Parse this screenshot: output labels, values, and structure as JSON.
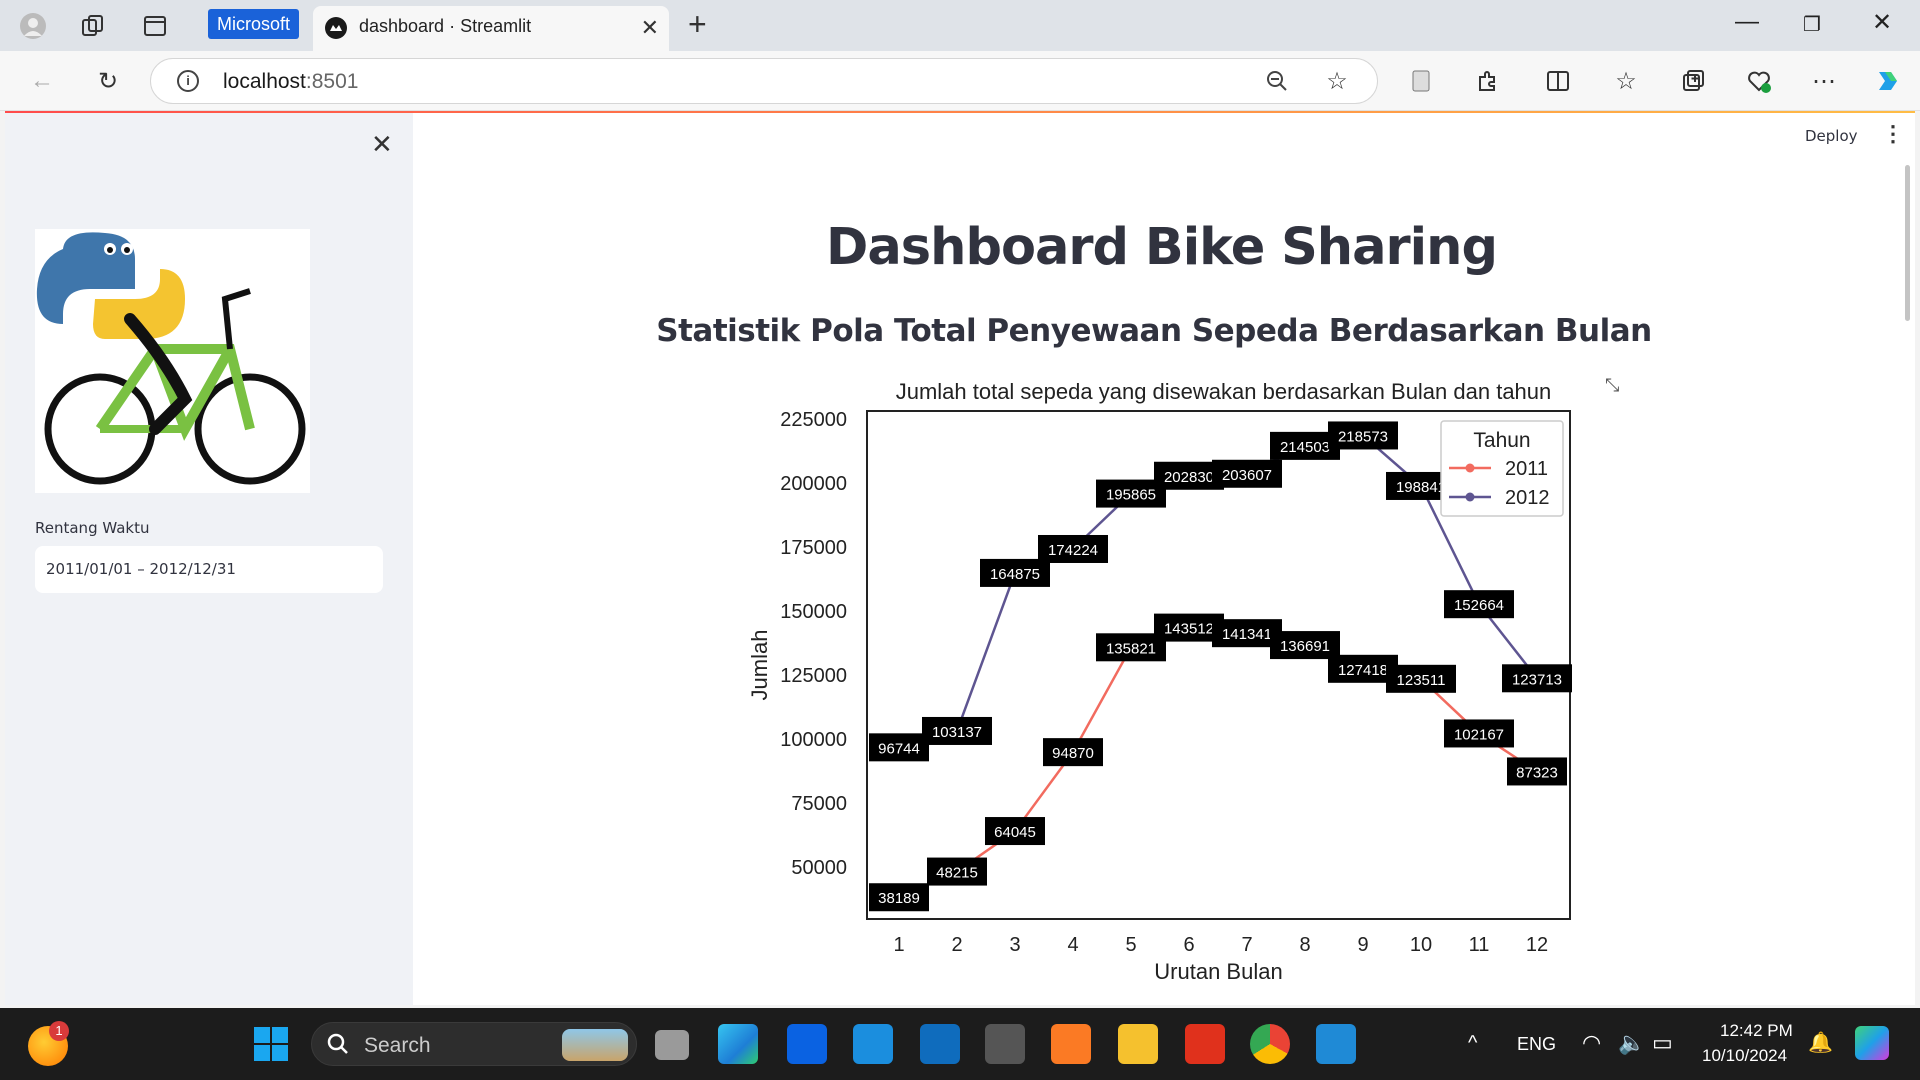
{
  "browser": {
    "tab_badge": "Microsoft",
    "tab_title": "dashboard · Streamlit",
    "url_host": "localhost",
    "url_port": ":8501"
  },
  "sidebar": {
    "date_range_label": "Rentang Waktu",
    "date_range_value": "2011/01/01 – 2012/12/31"
  },
  "app": {
    "deploy_label": "Deploy",
    "title": "Dashboard Bike Sharing",
    "subtitle": "Statistik Pola Total Penyewaan Sepeda Berdasarkan Bulan"
  },
  "chart_data": {
    "type": "line",
    "title": "Jumlah total sepeda yang disewakan berdasarkan Bulan dan tahun",
    "xlabel": "Urutan Bulan",
    "ylabel": "Jumlah",
    "x": [
      1,
      2,
      3,
      4,
      5,
      6,
      7,
      8,
      9,
      10,
      11,
      12
    ],
    "ylim": [
      25000,
      225000
    ],
    "yticks": [
      50000,
      75000,
      100000,
      125000,
      150000,
      175000,
      200000,
      225000
    ],
    "legend_title": "Tahun",
    "legend_position": "top-right",
    "grid": false,
    "series": [
      {
        "name": "2011",
        "color": "#f26b5f",
        "values": [
          38189,
          48215,
          64045,
          94870,
          135821,
          143512,
          141341,
          136691,
          127418,
          123511,
          102167,
          87323
        ]
      },
      {
        "name": "2012",
        "color": "#5e5591",
        "values": [
          96744,
          103137,
          164875,
          174224,
          195865,
          202830,
          203607,
          214503,
          218573,
          198841,
          152664,
          123713
        ]
      }
    ]
  },
  "taskbar": {
    "search_placeholder": "Search",
    "notification_count": "1",
    "language": "ENG",
    "time": "12:42 PM",
    "date": "10/10/2024"
  }
}
